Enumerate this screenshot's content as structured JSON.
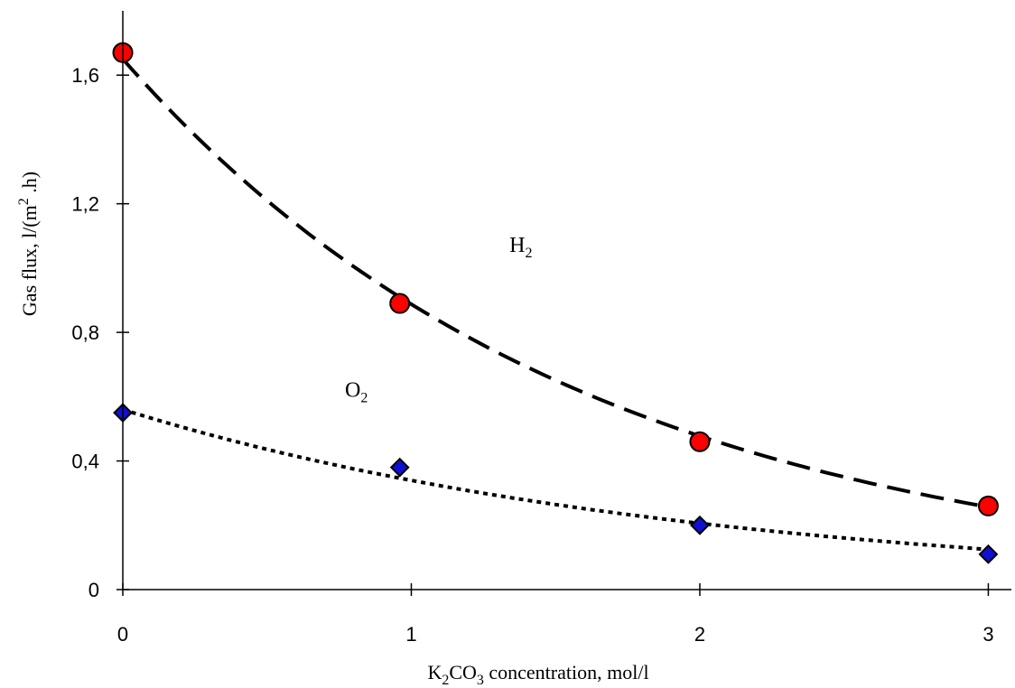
{
  "chart_data": {
    "type": "scatter",
    "title": "",
    "xlabel": {
      "prefix": "K",
      "sub1": "2",
      "mid": "CO",
      "sub2": "3",
      "suffix": " concentration, mol/l"
    },
    "ylabel": {
      "prefix": "Gas flux, l/(m",
      "sup": "2",
      "suffix": " .h)"
    },
    "xlim": [
      0,
      3.08
    ],
    "ylim": [
      0,
      1.8
    ],
    "x_ticks": [
      0,
      1,
      2,
      3
    ],
    "x_tick_labels": [
      "0",
      "1",
      "2",
      "3"
    ],
    "y_ticks": [
      0,
      0.4,
      0.8,
      1.2,
      1.6
    ],
    "y_tick_labels": [
      "0",
      "0,4",
      "0,8",
      "1,2",
      "1,6"
    ],
    "grid": false,
    "series": [
      {
        "name": "H",
        "name_sub": "2",
        "marker": "circle",
        "marker_color": "#ff0000",
        "line_style": "long-dash",
        "points": [
          {
            "x": 0,
            "y": 1.67
          },
          {
            "x": 0.96,
            "y": 0.89
          },
          {
            "x": 2,
            "y": 0.46
          },
          {
            "x": 3,
            "y": 0.26
          }
        ],
        "trend": {
          "type": "exponential",
          "a": 1.65,
          "b": -0.62
        },
        "label_at": {
          "x": 1.34,
          "y": 1.05
        }
      },
      {
        "name": "O",
        "name_sub": "2",
        "marker": "diamond",
        "marker_color": "#1010d0",
        "line_style": "dotted",
        "points": [
          {
            "x": 0,
            "y": 0.55
          },
          {
            "x": 0.96,
            "y": 0.38
          },
          {
            "x": 2,
            "y": 0.2
          },
          {
            "x": 3,
            "y": 0.11
          }
        ],
        "trend": {
          "type": "exponential",
          "a": 0.56,
          "b": -0.5
        },
        "label_at": {
          "x": 0.77,
          "y": 0.6
        }
      }
    ]
  }
}
